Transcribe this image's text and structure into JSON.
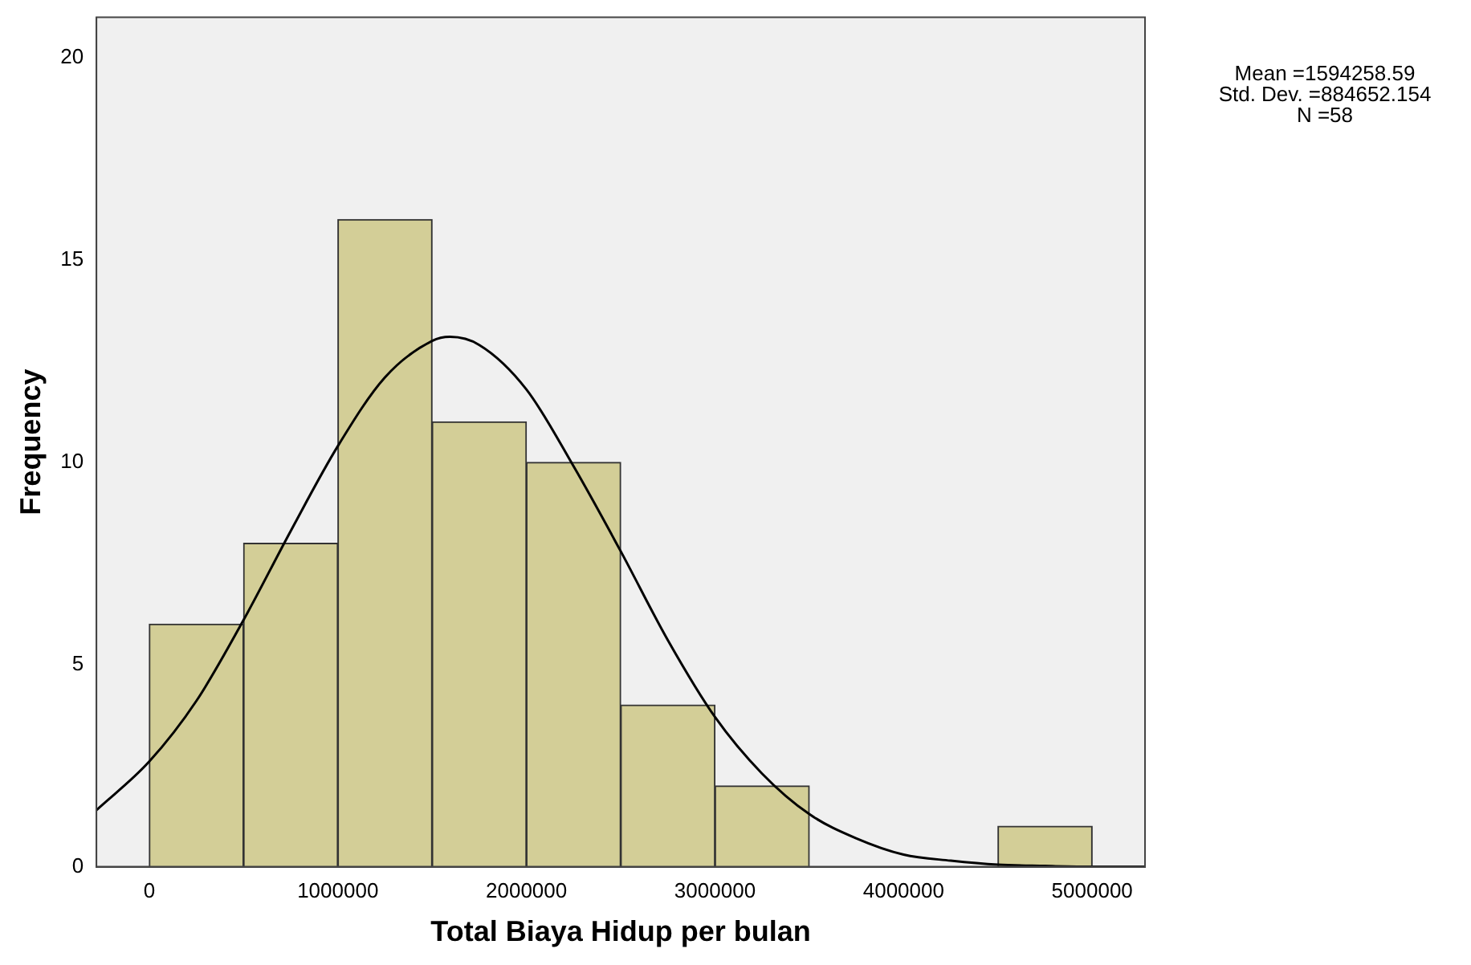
{
  "chart_data": {
    "type": "histogram",
    "xlabel": "Total Biaya Hidup per bulan",
    "ylabel": "Frequency",
    "bins": [
      0,
      500000,
      1000000,
      1500000,
      2000000,
      2500000,
      3000000,
      3500000,
      4000000,
      4500000,
      5000000
    ],
    "values": [
      6,
      8,
      16,
      11,
      10,
      4,
      2,
      0,
      0,
      1
    ],
    "color": "#d3ce97",
    "series": [
      {
        "type": "line",
        "color": "#000000",
        "x": [
          -280000,
          0,
          250000,
          500000,
          750000,
          1000000,
          1250000,
          1500000,
          1594259,
          1750000,
          2000000,
          2250000,
          2500000,
          2750000,
          3000000,
          3250000,
          3500000,
          3750000,
          4000000,
          4250000,
          4500000,
          4750000,
          5000000,
          5280000
        ],
        "values": [
          1.4,
          2.6,
          4.1,
          6.1,
          8.3,
          10.4,
          12.1,
          13,
          13.1,
          12.9,
          11.8,
          9.9,
          7.8,
          5.6,
          3.7,
          2.3,
          1.3,
          0.7,
          0.3,
          0.15,
          0.05,
          0.02,
          0,
          0
        ]
      }
    ],
    "xlim": [
      -280000,
      5280000
    ],
    "xticks": [
      0,
      1000000,
      2000000,
      3000000,
      4000000,
      5000000
    ],
    "ylim": [
      0,
      21
    ],
    "yticks": [
      0,
      5,
      10,
      15,
      20
    ],
    "grid": false,
    "legend": false,
    "marker": "none",
    "annotations": [
      "Mean =1594258.59",
      "Std. Dev. =884652.154",
      "N =58"
    ]
  }
}
